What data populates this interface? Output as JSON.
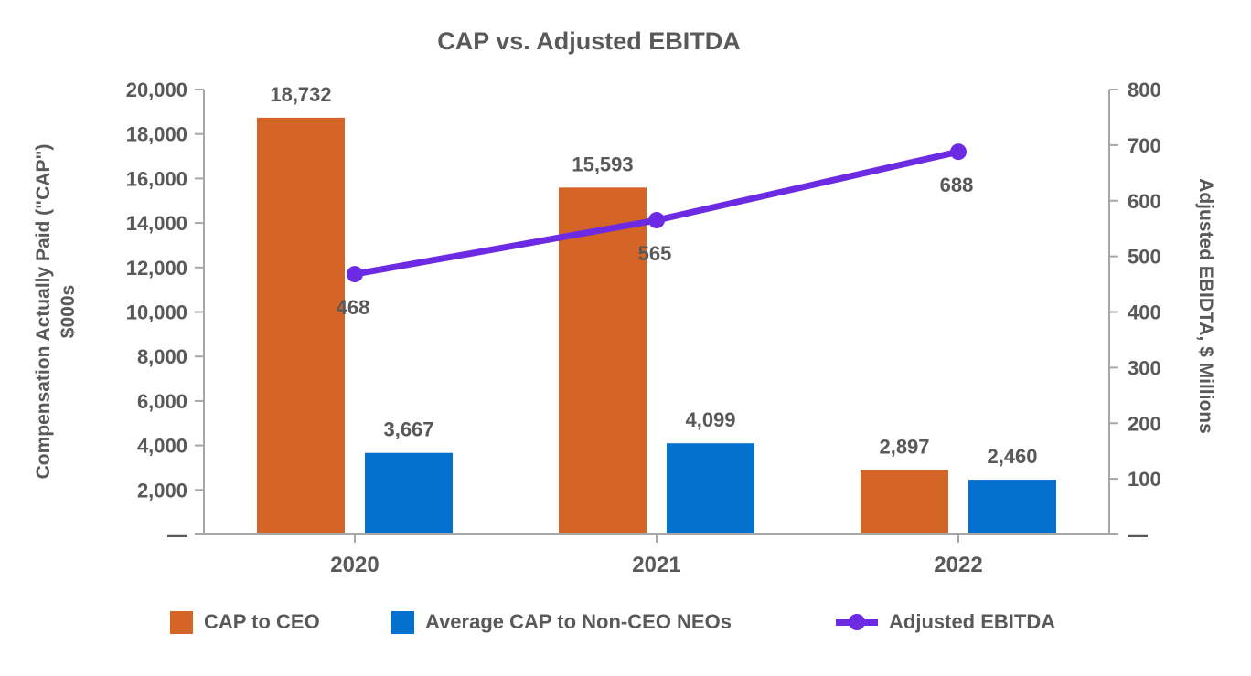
{
  "chart_data": {
    "type": "combo-bar-line",
    "title": "CAP vs. Adjusted EBITDA",
    "categories": [
      "2020",
      "2021",
      "2022"
    ],
    "series": [
      {
        "name": "CAP to CEO",
        "type": "bar",
        "axis": "left",
        "color": "#D56527",
        "values": [
          18732,
          15593,
          2897
        ],
        "labels": [
          "18,732",
          "15,593",
          "2,897"
        ]
      },
      {
        "name": "Average CAP to Non-CEO NEOs",
        "type": "bar",
        "axis": "left",
        "color": "#0471CF",
        "values": [
          3667,
          4099,
          2460
        ],
        "labels": [
          "3,667",
          "4,099",
          "2,460"
        ]
      },
      {
        "name": "Adjusted EBITDA",
        "type": "line",
        "axis": "right",
        "color": "#6D2AE3",
        "values": [
          468,
          565,
          688
        ],
        "labels": [
          "468",
          "565",
          "688"
        ]
      }
    ],
    "left_axis": {
      "title_line1": "Compensation Actually Paid (\"CAP\")",
      "title_line2": "$000s",
      "min": 0,
      "max": 20000,
      "tick_step": 2000,
      "tick_labels": [
        "20,000",
        "18,000",
        "16,000",
        "14,000",
        "12,000",
        "10,000",
        "8,000",
        "6,000",
        "4,000",
        "2,000",
        "—"
      ]
    },
    "right_axis": {
      "title": "Adjusted EBIDTA, $ Millions",
      "min": 0,
      "max": 800,
      "tick_step": 100,
      "tick_labels": [
        "800",
        "700",
        "600",
        "500",
        "400",
        "300",
        "200",
        "100",
        "—"
      ]
    },
    "x_axis": {
      "tick_labels": [
        "2020",
        "2021",
        "2022"
      ]
    },
    "style": {
      "text_color": "#595959",
      "axis_color": "#A6A6A6",
      "grid": "off",
      "legend_position": "bottom"
    }
  }
}
